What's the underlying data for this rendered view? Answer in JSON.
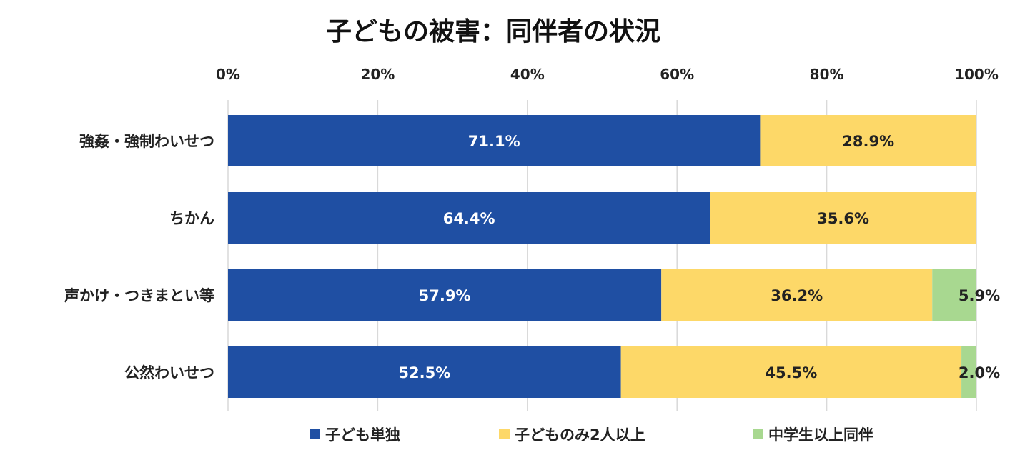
{
  "chart_data": {
    "type": "bar",
    "orientation": "horizontal",
    "stacked": "percent",
    "title": "子どもの被害：同伴者の状況",
    "categories": [
      "強姦・強制わいせつ",
      "ちかん",
      "声かけ・つきまとい等",
      "公然わいせつ"
    ],
    "series": [
      {
        "name": "子ども単独",
        "color": "#1f4fa3",
        "label_color": "#ffffff",
        "values": [
          71.1,
          64.4,
          57.9,
          52.5
        ]
      },
      {
        "name": "子どものみ2人以上",
        "color": "#fdd868",
        "label_color": "#222222",
        "values": [
          28.9,
          35.6,
          36.2,
          45.5
        ]
      },
      {
        "name": "中学生以上同伴",
        "color": "#a8d890",
        "label_color": "#222222",
        "values": [
          0,
          0,
          5.9,
          2.0
        ]
      }
    ],
    "data_labels": [
      [
        "71.1%",
        "64.4%",
        "57.9%",
        "52.5%"
      ],
      [
        "28.9%",
        "35.6%",
        "36.2%",
        "45.5%"
      ],
      [
        "",
        "",
        "5.9%",
        "2.0%"
      ]
    ],
    "xticks": [
      "0%",
      "20%",
      "40%",
      "60%",
      "80%",
      "100%"
    ],
    "xlim": [
      0,
      100
    ],
    "xaxis_position": "top",
    "grid": true,
    "legend": "bottom"
  }
}
